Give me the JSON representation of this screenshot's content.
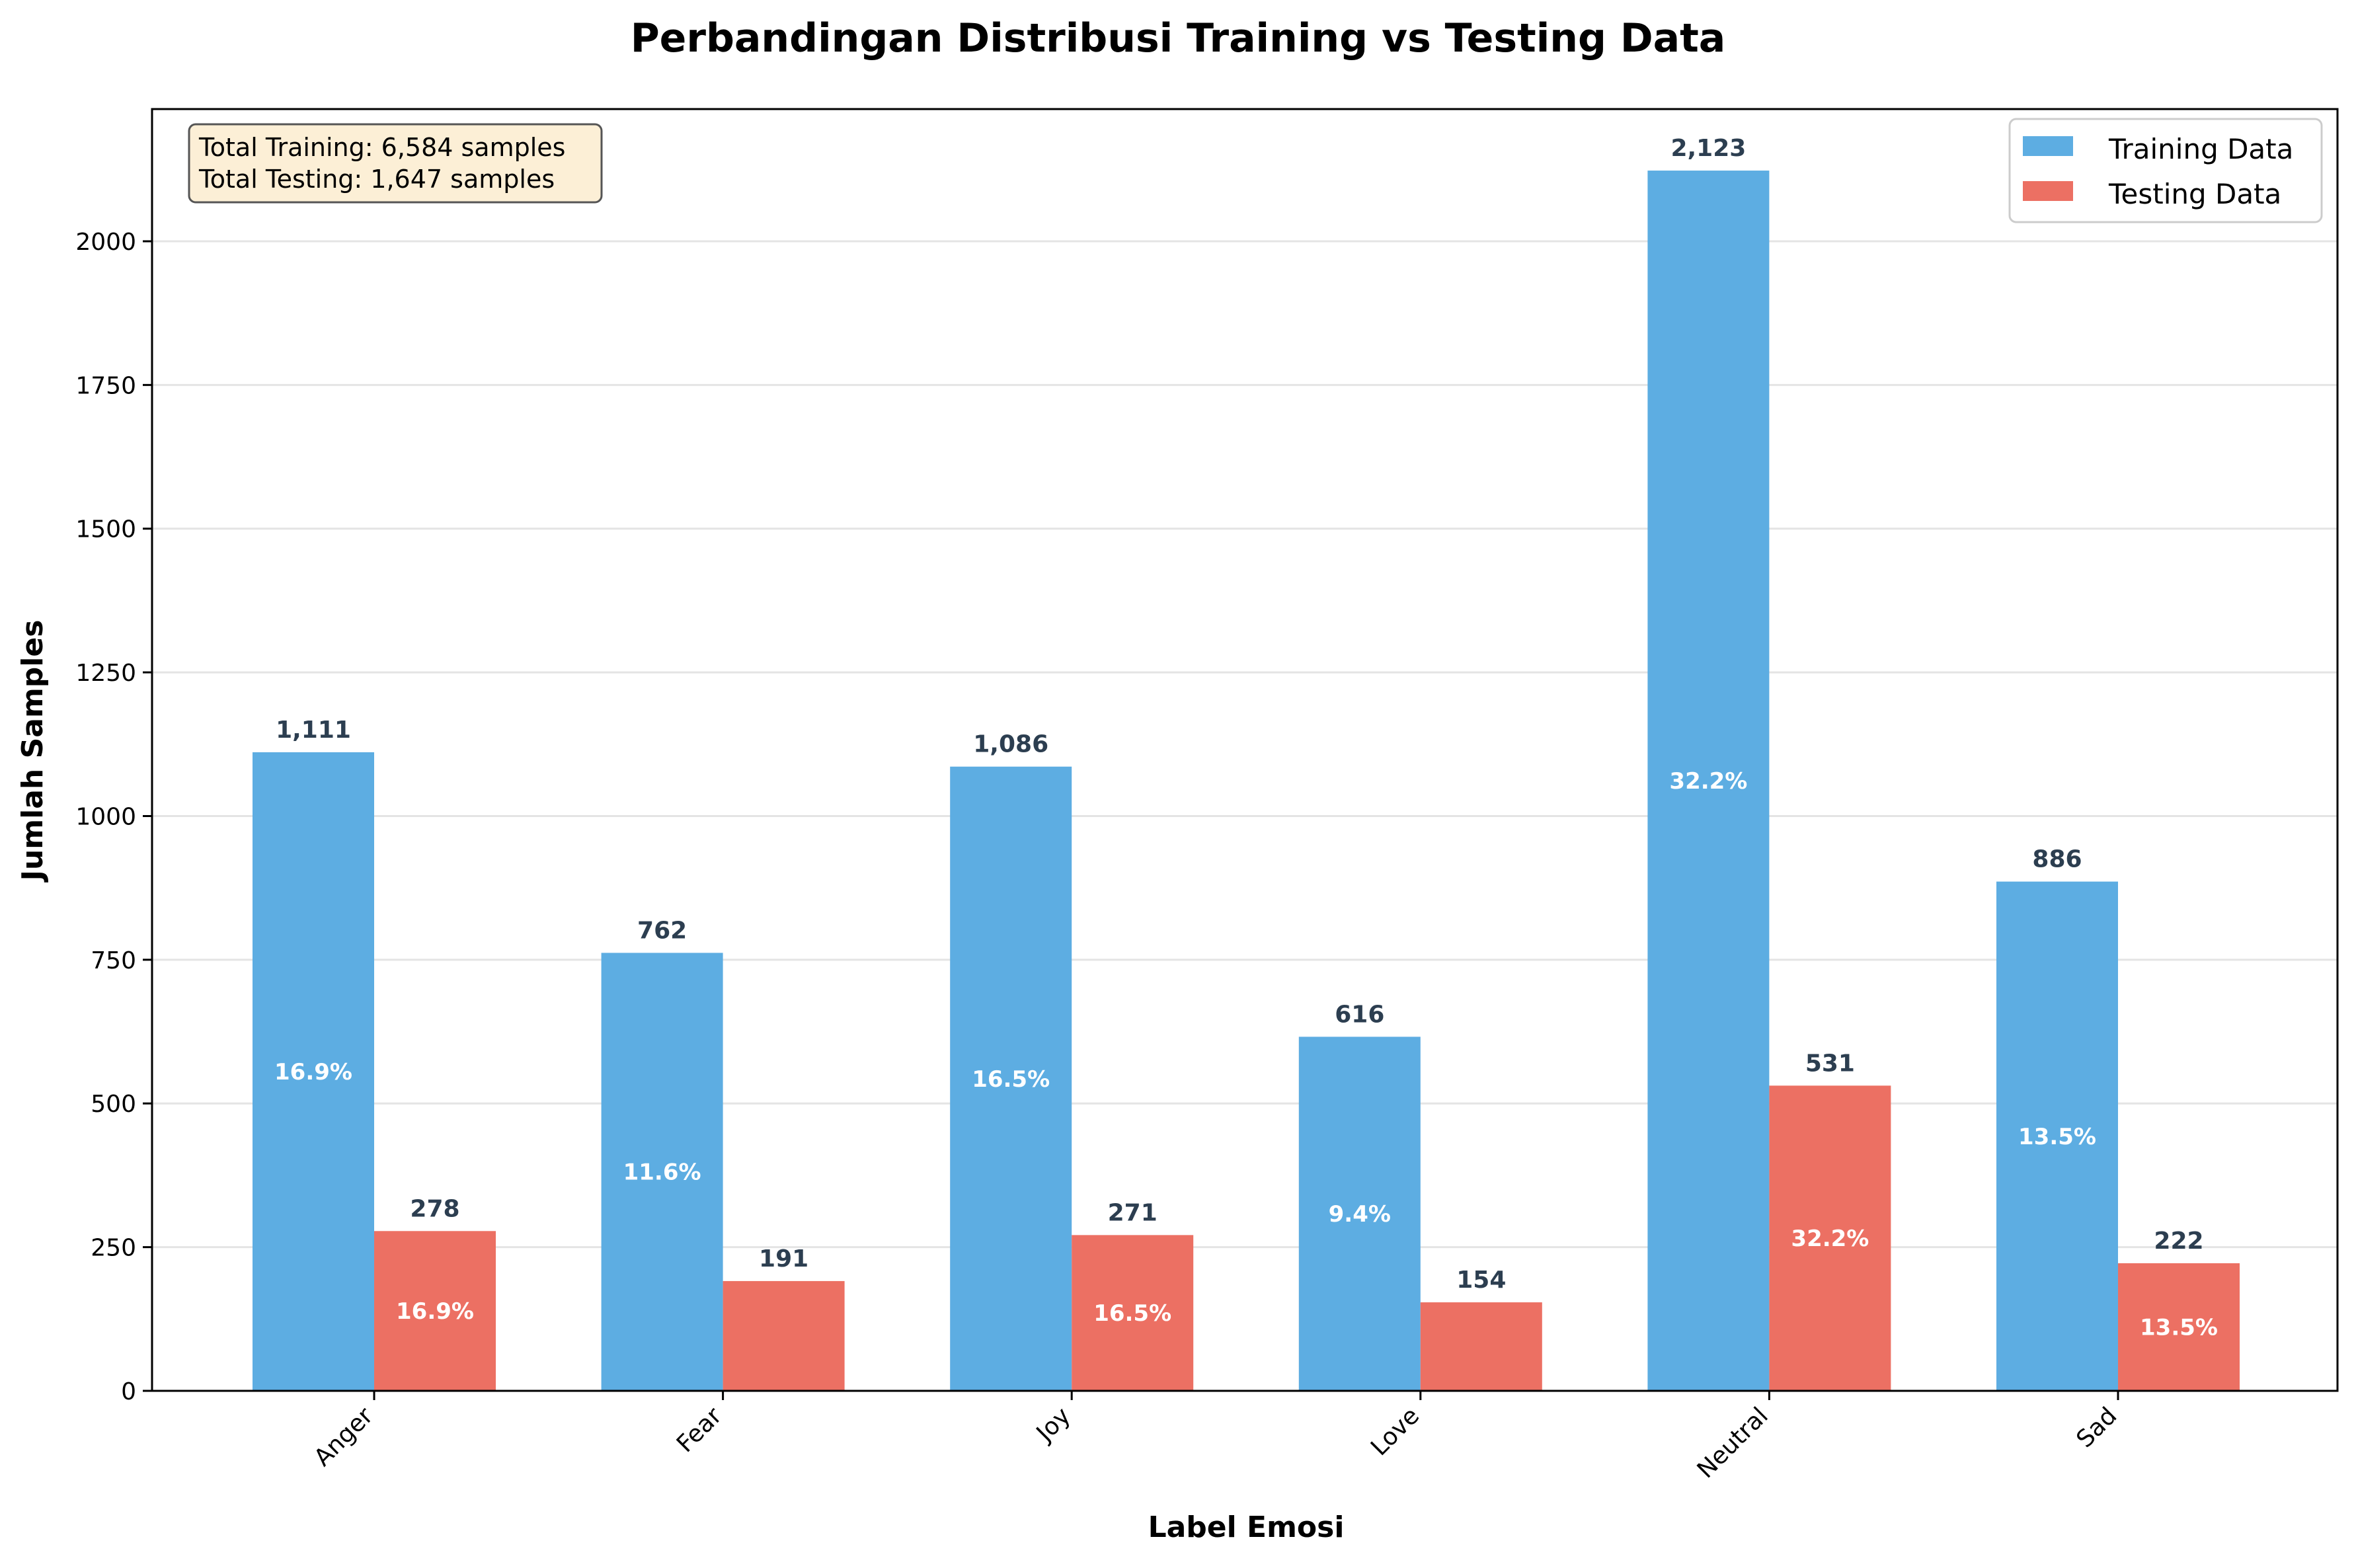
{
  "chart_data": {
    "type": "bar",
    "title": "Perbandingan Distribusi Training vs Testing Data",
    "xlabel": "Label Emosi",
    "ylabel": "Jumlah Samples",
    "categories": [
      "Anger",
      "Fear",
      "Joy",
      "Love",
      "Neutral",
      "Sad"
    ],
    "series": [
      {
        "name": "Training Data",
        "values": [
          1111,
          762,
          1086,
          616,
          2123,
          886
        ],
        "value_labels": [
          "1,111",
          "762",
          "1,086",
          "616",
          "2,123",
          "886"
        ],
        "percent_labels": [
          "16.9%",
          "11.6%",
          "16.5%",
          "9.4%",
          "32.2%",
          "13.5%"
        ],
        "color": "#5dade2"
      },
      {
        "name": "Testing Data",
        "values": [
          278,
          191,
          271,
          154,
          531,
          222
        ],
        "value_labels": [
          "278",
          "191",
          "271",
          "154",
          "531",
          "222"
        ],
        "percent_labels": [
          "16.9%",
          "",
          "16.5%",
          "",
          "32.2%",
          "13.5%"
        ],
        "color": "#ec7063"
      }
    ],
    "ylim": [
      0,
      2230
    ],
    "yticks": [
      0,
      250,
      500,
      750,
      1000,
      1250,
      1500,
      1750,
      2000
    ],
    "grid": "horizontal",
    "legend_position": "top-right",
    "info_box": [
      "Total Training: 6,584 samples",
      "Total Testing: 1,647 samples"
    ],
    "info_box_colors": {
      "fill": "#fcefd6",
      "edge": "#555555"
    }
  }
}
